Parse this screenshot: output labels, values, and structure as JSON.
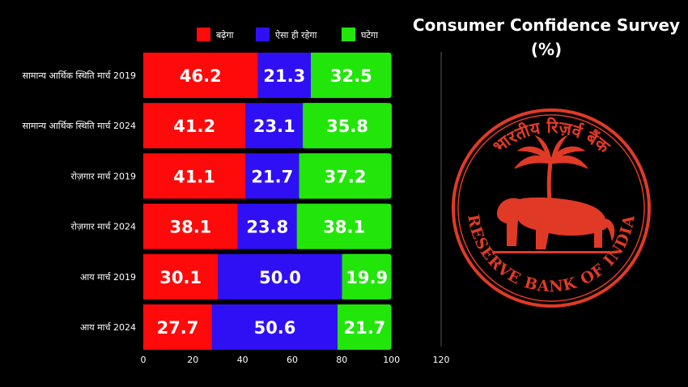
{
  "title": {
    "line1": "Consumer Confidence Survey",
    "line2": "(%)"
  },
  "colors": {
    "background": "#000000",
    "increase": "#ff0a0a",
    "same": "#2f10f5",
    "decrease": "#22e60a",
    "seal": "#e03a26",
    "text": "#ffffff"
  },
  "chart_data": {
    "type": "bar",
    "orientation": "horizontal",
    "stacked": true,
    "categories": [
      "सामान्य आर्थिक स्थिति मार्च 2019",
      "सामान्य आर्थिक स्थिति मार्च 2024",
      "रोज़गार मार्च 2019",
      "रोज़गार मार्च 2024",
      "आय मार्च 2019",
      "आय मार्च 2024"
    ],
    "series": [
      {
        "name": "बढ़ेगा",
        "color": "#ff0a0a",
        "values": [
          46.2,
          41.2,
          41.1,
          38.1,
          30.1,
          27.7
        ]
      },
      {
        "name": "ऐसा ही रहेगा",
        "color": "#2f10f5",
        "values": [
          21.3,
          23.1,
          21.7,
          23.8,
          50.0,
          50.6
        ]
      },
      {
        "name": "घटेगा",
        "color": "#22e60a",
        "values": [
          32.5,
          35.8,
          37.2,
          38.1,
          19.9,
          21.7
        ]
      }
    ],
    "xlim": [
      0,
      120
    ],
    "xticks": [
      "0",
      "20",
      "40",
      "60",
      "80",
      "100",
      "120"
    ],
    "legend_position": "top",
    "grid": false
  },
  "seal": {
    "hindi_text": "भारतीय रिज़र्व बैंक",
    "english_text": "RESERVE BANK OF INDIA"
  }
}
